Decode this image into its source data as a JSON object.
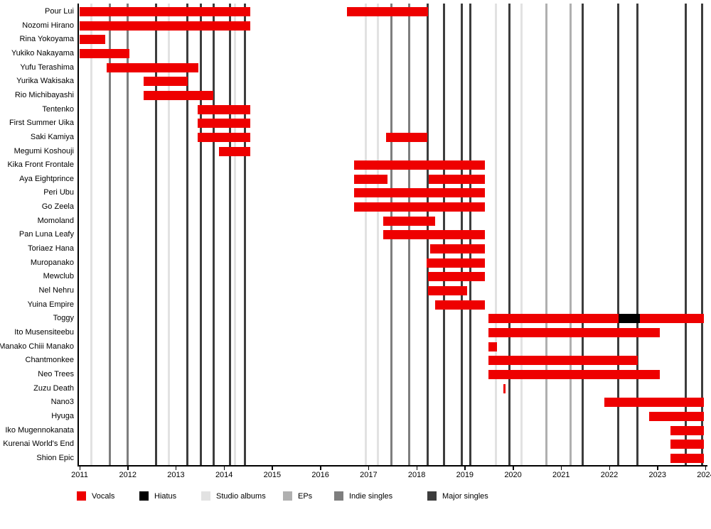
{
  "chart_data": {
    "type": "timeline-gantt",
    "description": "Band member timeline: rows are members, red bars show vocal tenure, black shows hiatus; vertical lines mark releases.",
    "x_axis": {
      "start_year": 2011,
      "end_year": 2024,
      "tick_labels": [
        "2011",
        "2012",
        "2013",
        "2014",
        "2015",
        "2016",
        "2017",
        "2018",
        "2019",
        "2020",
        "2021",
        "2022",
        "2023",
        "2024"
      ]
    },
    "members": [
      {
        "name": "Pour Lui",
        "vocals": [
          [
            2011.0,
            2014.55
          ],
          [
            2016.55,
            2018.24
          ]
        ]
      },
      {
        "name": "Nozomi Hirano",
        "vocals": [
          [
            2011.0,
            2014.55
          ]
        ]
      },
      {
        "name": "Rina Yokoyama",
        "vocals": [
          [
            2011.0,
            2011.53
          ]
        ]
      },
      {
        "name": "Yukiko Nakayama",
        "vocals": [
          [
            2011.0,
            2012.03
          ]
        ]
      },
      {
        "name": "Yufu Terashima",
        "vocals": [
          [
            2011.56,
            2013.47
          ]
        ]
      },
      {
        "name": "Yurika Wakisaka",
        "vocals": [
          [
            2012.33,
            2013.24
          ]
        ]
      },
      {
        "name": "Rio Michibayashi",
        "vocals": [
          [
            2012.33,
            2013.78
          ]
        ]
      },
      {
        "name": "Tentenko",
        "vocals": [
          [
            2013.45,
            2014.55
          ]
        ]
      },
      {
        "name": "First Summer Uika",
        "vocals": [
          [
            2013.45,
            2014.55
          ]
        ]
      },
      {
        "name": "Saki Kamiya",
        "vocals": [
          [
            2013.45,
            2014.55
          ],
          [
            2017.36,
            2018.22
          ]
        ]
      },
      {
        "name": "Megumi Koshouji",
        "vocals": [
          [
            2013.9,
            2014.55
          ]
        ]
      },
      {
        "name": "Kika Front Frontale",
        "vocals": [
          [
            2016.7,
            2019.42
          ]
        ]
      },
      {
        "name": "Aya Eightprince",
        "vocals": [
          [
            2016.7,
            2017.39
          ],
          [
            2018.25,
            2019.42
          ]
        ]
      },
      {
        "name": "Peri Ubu",
        "vocals": [
          [
            2016.7,
            2019.42
          ]
        ]
      },
      {
        "name": "Go Zeela",
        "vocals": [
          [
            2016.7,
            2019.42
          ]
        ]
      },
      {
        "name": "Momoland",
        "vocals": [
          [
            2017.3,
            2018.38
          ]
        ]
      },
      {
        "name": "Pan Luna Leafy",
        "vocals": [
          [
            2017.3,
            2019.42
          ]
        ]
      },
      {
        "name": "Toriaez Hana",
        "vocals": [
          [
            2018.28,
            2019.42
          ]
        ]
      },
      {
        "name": "Muropanako",
        "vocals": [
          [
            2018.21,
            2019.42
          ]
        ]
      },
      {
        "name": "Mewclub",
        "vocals": [
          [
            2018.24,
            2019.42
          ]
        ]
      },
      {
        "name": "Nel Nehru",
        "vocals": [
          [
            2018.24,
            2019.05
          ]
        ]
      },
      {
        "name": "Yuina Empire",
        "vocals": [
          [
            2018.38,
            2019.42
          ]
        ]
      },
      {
        "name": "Toggy",
        "vocals": [
          [
            2019.49,
            2023.97
          ]
        ],
        "hiatus": [
          [
            2022.19,
            2022.64
          ]
        ]
      },
      {
        "name": "Ito Musensiteebu",
        "vocals": [
          [
            2019.49,
            2023.05
          ]
        ]
      },
      {
        "name": "Manako Chiii Manako",
        "vocals": [
          [
            2019.49,
            2019.67
          ]
        ]
      },
      {
        "name": "Chantmonkee",
        "vocals": [
          [
            2019.49,
            2022.59
          ]
        ]
      },
      {
        "name": "Neo Trees",
        "vocals": [
          [
            2019.49,
            2023.05
          ]
        ]
      },
      {
        "name": "Zuzu Death",
        "vocals": [
          [
            2019.8,
            2019.84
          ]
        ]
      },
      {
        "name": "Nano3",
        "vocals": [
          [
            2021.9,
            2023.97
          ]
        ]
      },
      {
        "name": "Hyuga",
        "vocals": [
          [
            2022.83,
            2023.97
          ]
        ]
      },
      {
        "name": "Iko Mugennokanata",
        "vocals": [
          [
            2023.27,
            2023.97
          ]
        ]
      },
      {
        "name": "Kurenai World's End",
        "vocals": [
          [
            2023.27,
            2023.97
          ]
        ]
      },
      {
        "name": "Shion Epic",
        "vocals": [
          [
            2023.27,
            2023.97
          ]
        ]
      }
    ],
    "releases": {
      "studio_albums": [
        2011.25,
        2012.86,
        2014.23,
        2016.95,
        2017.2,
        2019.65,
        2020.17
      ],
      "eps": [
        2020.69,
        2021.2
      ],
      "indie_singles": [
        2011.63,
        2012.0,
        2017.47,
        2017.84
      ],
      "major_singles": [
        2012.59,
        2013.24,
        2013.52,
        2013.78,
        2014.12,
        2014.44,
        2018.22,
        2018.57,
        2018.93,
        2019.11,
        2019.93,
        2021.45,
        2022.19,
        2022.59,
        2023.59,
        2023.92
      ]
    },
    "legend": [
      {
        "key": "vocals",
        "label": "Vocals",
        "color": "#EE0000"
      },
      {
        "key": "hiatus",
        "label": "Hiatus",
        "color": "#000000"
      },
      {
        "key": "studio_albums",
        "label": "Studio albums",
        "color": "#E2E2E2"
      },
      {
        "key": "eps",
        "label": "EPs",
        "color": "#B0B0B0"
      },
      {
        "key": "indie_singles",
        "label": "Indie singles",
        "color": "#7E7E7E"
      },
      {
        "key": "major_singles",
        "label": "Major singles",
        "color": "#3D3D3D"
      }
    ],
    "colors": {
      "vocals": "#EE0000",
      "hiatus": "#000000",
      "studio_albums": "#E2E2E2",
      "eps": "#B0B0B0",
      "indie_singles": "#7E7E7E",
      "major_singles": "#3D3D3D",
      "axis": "#000000"
    }
  }
}
